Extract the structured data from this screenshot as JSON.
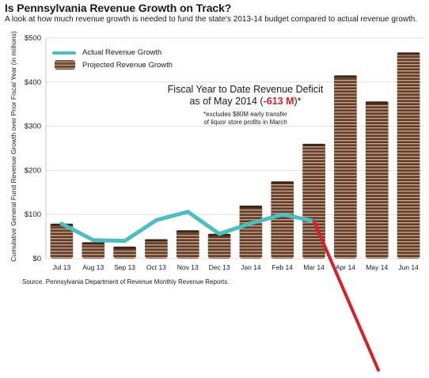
{
  "title": "Is Pennsylvania Revenue Growth on Track?",
  "subtitle": "A look at how much revenue growth is needed to fund the state's 2013-14 budget compared to actual revenue growth.",
  "source": "Source. Pennsylvania Department of Revenue Monthly Revenue Reports.",
  "annotation": {
    "line1": "Fiscal Year to Date Revenue Deficit",
    "line2_prefix": "as of May 2014 (",
    "deficit_value": "-613 M",
    "line2_suffix": ")*",
    "note1": "*excludes $80M early transfer",
    "note2": "of liquor store profits in March"
  },
  "colors": {
    "actual_line": "#4dbdbd",
    "deficit_arrow": "#d2232a",
    "coin_dark": "#5a3a28",
    "coin_light": "#c9a58c"
  },
  "chart_data": {
    "type": "bar",
    "title": "Is Pennsylvania Revenue Growth on Track?",
    "ylabel": "Cumulative General Fund Revenue Growth over Prior Fiscal Year (in millions)",
    "xlabel": "",
    "ylim": [
      0,
      500
    ],
    "yticks": [
      0,
      100,
      200,
      300,
      400,
      500
    ],
    "ytick_labels": [
      "$0",
      "$100",
      "$200",
      "$300",
      "$400",
      "$500"
    ],
    "categories": [
      "Jul 13",
      "Aug 13",
      "Sep 13",
      "Oct 13",
      "Nov 13",
      "Dec 13",
      "Jan 14",
      "Feb 14",
      "Mar 14",
      "Apr 14",
      "May 14",
      "Jun 14"
    ],
    "legend_position": "top-left",
    "series": [
      {
        "name": "Projected Revenue Growth",
        "kind": "bar",
        "values": [
          79,
          37,
          27,
          44,
          64,
          56,
          120,
          175,
          260,
          415,
          356,
          467
        ]
      },
      {
        "name": "Actual Revenue Growth",
        "kind": "line",
        "values": [
          79,
          42,
          40,
          87,
          106,
          56,
          80,
          100,
          85,
          null,
          null,
          null
        ]
      }
    ],
    "grid": true
  }
}
